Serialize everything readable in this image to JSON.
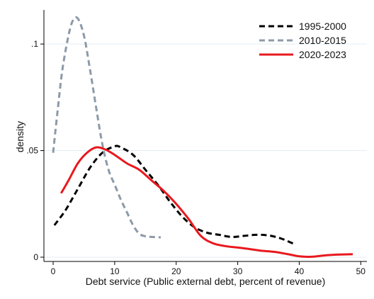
{
  "chart_data": {
    "type": "line",
    "title": "",
    "xlabel": "Debt service (Public external debt, percent of revenue)",
    "ylabel": "density",
    "xlim": [
      -1.5,
      51
    ],
    "ylim": [
      -0.002,
      0.116
    ],
    "x_ticks": [
      0,
      10,
      20,
      30,
      40,
      50
    ],
    "x_tick_labels": [
      "0",
      "10",
      "20",
      "30",
      "40",
      "50"
    ],
    "y_ticks": [
      0,
      0.05,
      0.1
    ],
    "y_tick_labels": [
      "0",
      ".05",
      ".1"
    ],
    "grid": "horizontal",
    "legend_position": "top-right",
    "series": [
      {
        "name": "1995-2000",
        "color": "#000000",
        "dash": "dashed",
        "points": [
          [
            0.2,
            0.015
          ],
          [
            2,
            0.022
          ],
          [
            4,
            0.032
          ],
          [
            6,
            0.042
          ],
          [
            8,
            0.049
          ],
          [
            10,
            0.052
          ],
          [
            11,
            0.0515
          ],
          [
            13,
            0.048
          ],
          [
            15,
            0.041
          ],
          [
            17,
            0.034
          ],
          [
            19,
            0.026
          ],
          [
            21,
            0.019
          ],
          [
            23,
            0.014
          ],
          [
            25,
            0.0115
          ],
          [
            27,
            0.0105
          ],
          [
            29,
            0.0095
          ],
          [
            31,
            0.01
          ],
          [
            33,
            0.0105
          ],
          [
            35,
            0.0102
          ],
          [
            37,
            0.0088
          ],
          [
            39,
            0.0064
          ]
        ]
      },
      {
        "name": "2010-2015",
        "color": "#8c9aa8",
        "dash": "dashed",
        "points": [
          [
            0,
            0.049
          ],
          [
            0.7,
            0.068
          ],
          [
            1.5,
            0.088
          ],
          [
            2.5,
            0.104
          ],
          [
            3.2,
            0.111
          ],
          [
            4,
            0.112
          ],
          [
            5,
            0.104
          ],
          [
            6,
            0.088
          ],
          [
            7,
            0.07
          ],
          [
            8,
            0.053
          ],
          [
            9,
            0.041
          ],
          [
            10,
            0.034
          ],
          [
            11,
            0.027
          ],
          [
            12,
            0.021
          ],
          [
            13,
            0.015
          ],
          [
            14,
            0.011
          ],
          [
            15,
            0.0098
          ],
          [
            16,
            0.0095
          ],
          [
            17.5,
            0.0093
          ]
        ]
      },
      {
        "name": "2020-2023",
        "color": "#e8191e",
        "dash": "solid",
        "points": [
          [
            1.3,
            0.03
          ],
          [
            2.5,
            0.036
          ],
          [
            4,
            0.044
          ],
          [
            5.5,
            0.049
          ],
          [
            7,
            0.0515
          ],
          [
            8.5,
            0.0505
          ],
          [
            10,
            0.048
          ],
          [
            12,
            0.044
          ],
          [
            14,
            0.041
          ],
          [
            16,
            0.036
          ],
          [
            18,
            0.031
          ],
          [
            20,
            0.025
          ],
          [
            22,
            0.018
          ],
          [
            24,
            0.01
          ],
          [
            26,
            0.0065
          ],
          [
            28,
            0.0052
          ],
          [
            30,
            0.0045
          ],
          [
            32,
            0.0038
          ],
          [
            34,
            0.003
          ],
          [
            36,
            0.0025
          ],
          [
            38,
            0.0015
          ],
          [
            40,
            0.0004
          ],
          [
            42,
            0.0002
          ],
          [
            44,
            0.0008
          ],
          [
            46,
            0.0012
          ],
          [
            48.7,
            0.0014
          ]
        ]
      }
    ]
  }
}
